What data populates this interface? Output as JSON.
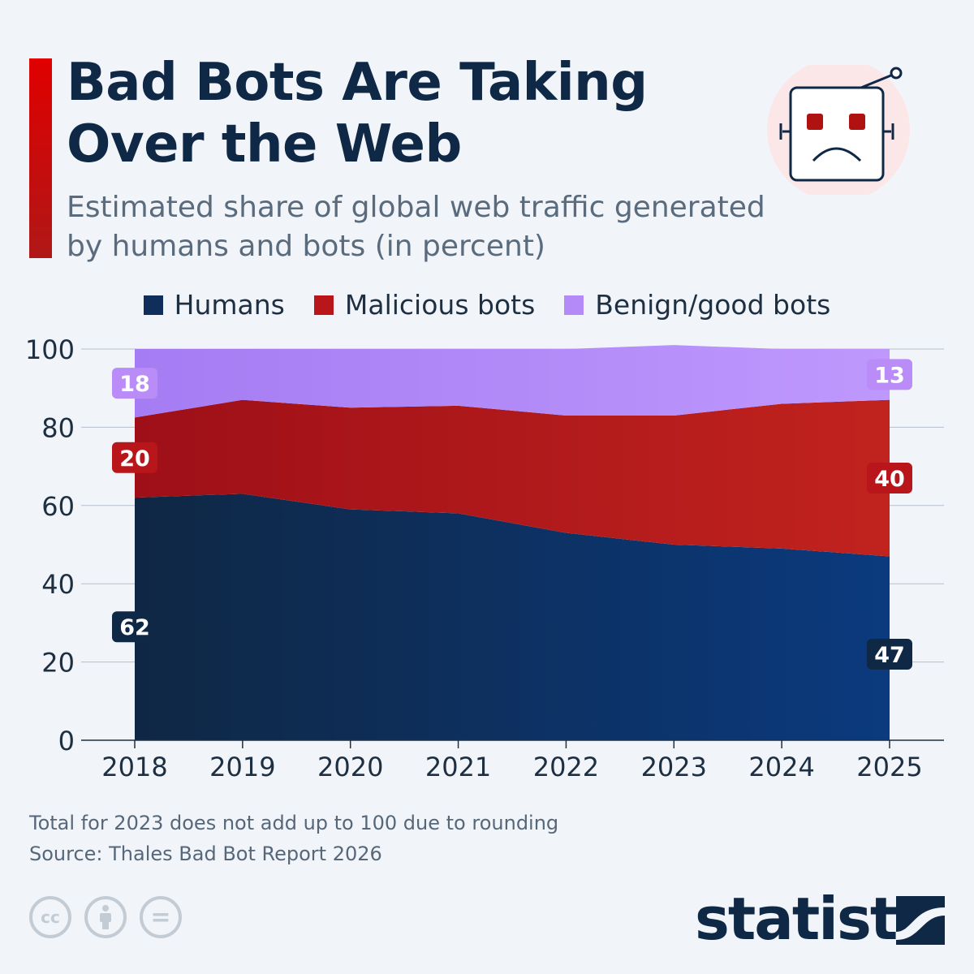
{
  "header": {
    "title": "Bad Bots Are Taking Over the Web",
    "subtitle": "Estimated share of global web traffic generated by humans and bots (in percent)"
  },
  "icons": {
    "header_illustration": "sad-robot-icon",
    "license": [
      "cc-icon",
      "by-icon",
      "nd-icon"
    ],
    "brand_mark": "statista-logo-icon"
  },
  "colors": {
    "accent": "#d30000",
    "humans_left": "#0f2744",
    "humans_right": "#0b3a7e",
    "malicious_left": "#9e0f18",
    "malicious_right": "#c1231e",
    "benign_left": "#a57cf3",
    "benign_right": "#bf98fd",
    "label_humans": "#0f2846",
    "label_malicious": "#b8161a",
    "label_benign": "#b98cf8"
  },
  "chart_data": {
    "type": "area",
    "stacked": true,
    "categories": [
      "2018",
      "2019",
      "2020",
      "2021",
      "2022",
      "2023",
      "2024",
      "2025"
    ],
    "series": [
      {
        "name": "Humans",
        "values": [
          62,
          63,
          59,
          58,
          53,
          50,
          49,
          47
        ],
        "labels": {
          "2018": "62",
          "2025": "47"
        }
      },
      {
        "name": "Malicious bots",
        "values": [
          20.5,
          24,
          26,
          27.5,
          30,
          33,
          37,
          40
        ],
        "labels": {
          "2018": "20",
          "2025": "40"
        }
      },
      {
        "name": "Benign/good bots",
        "values": [
          17.5,
          13,
          15,
          14.5,
          17,
          18,
          14,
          13
        ],
        "labels": {
          "2018": "18",
          "2025": "13"
        }
      }
    ],
    "yticks": [
      "0",
      "20",
      "40",
      "60",
      "80",
      "100"
    ],
    "ylim": [
      0,
      100
    ],
    "grid": true,
    "legend": "top-center"
  },
  "notes": {
    "footnote": "Total for 2023 does not add up to 100 due to rounding",
    "source": "Source: Thales Bad Bot Report 2026"
  },
  "brand": {
    "name": "statista"
  },
  "license": {
    "cc": "cc",
    "nd": "="
  }
}
